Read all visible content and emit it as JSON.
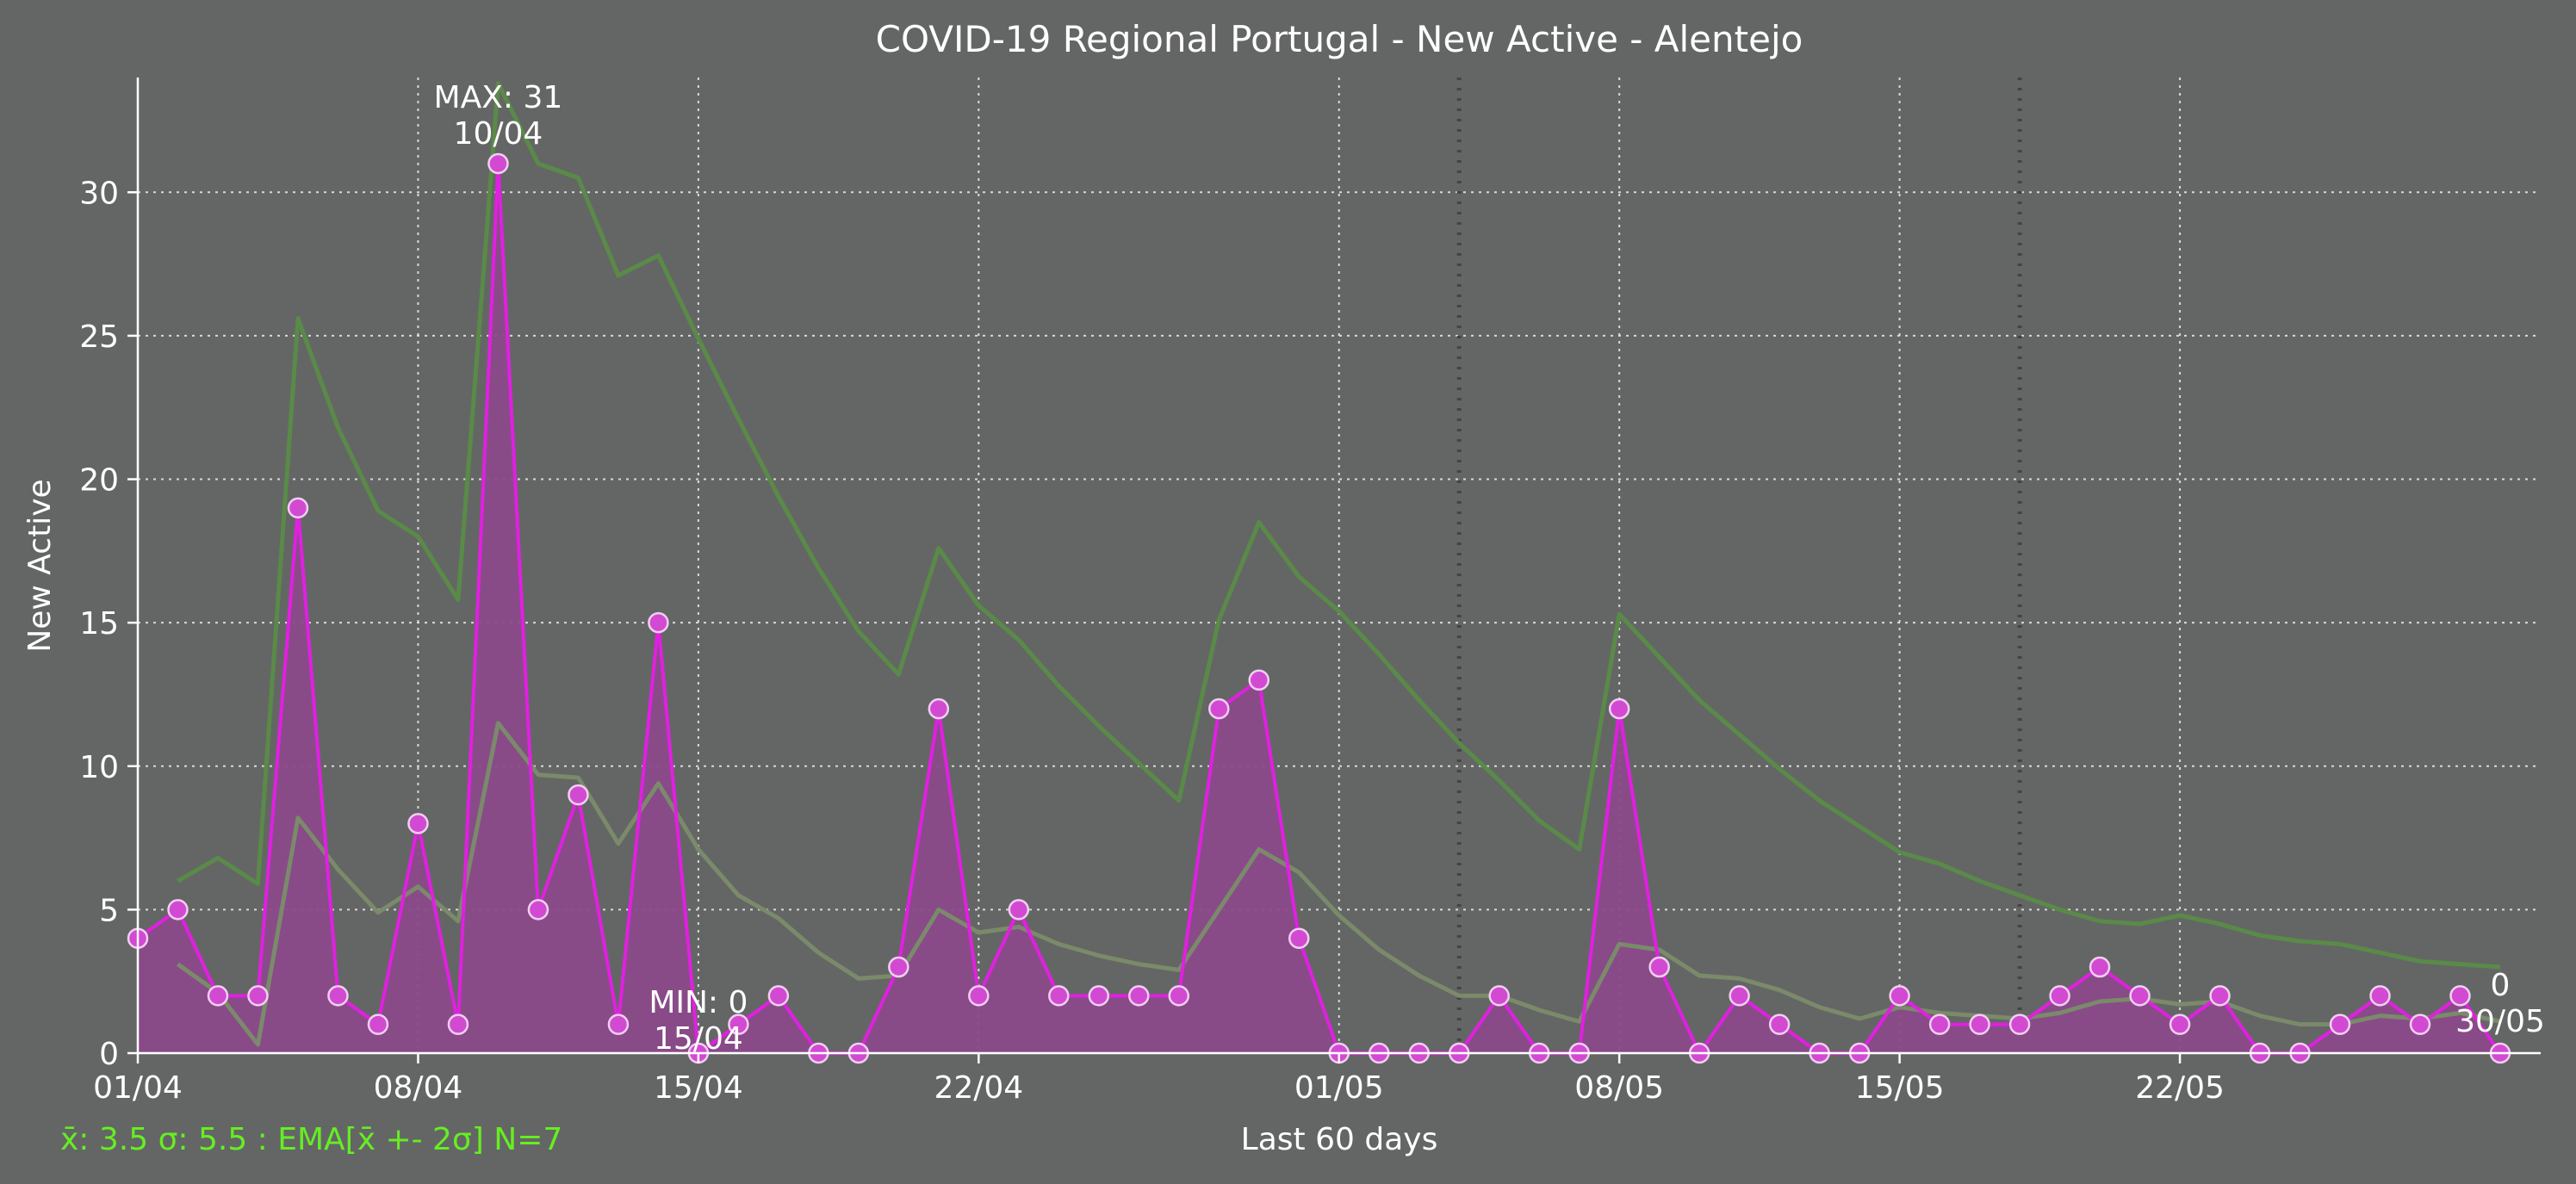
{
  "chart_data": {
    "type": "line",
    "title": "COVID-19 Regional Portugal - New Active - Alentejo",
    "xlabel": "Last 60 days",
    "ylabel": "New Active",
    "ylim": [
      0,
      34
    ],
    "yticks": [
      0,
      5,
      10,
      15,
      20,
      25,
      30
    ],
    "xticks": [
      {
        "index": 0,
        "label": "01/04"
      },
      {
        "index": 7,
        "label": "08/04"
      },
      {
        "index": 14,
        "label": "15/04"
      },
      {
        "index": 21,
        "label": "22/04"
      },
      {
        "index": 30,
        "label": "01/05"
      },
      {
        "index": 37,
        "label": "08/05"
      },
      {
        "index": 44,
        "label": "15/05"
      },
      {
        "index": 51,
        "label": "22/05"
      }
    ],
    "grid": true,
    "week_markers": [
      33,
      47
    ],
    "dates": [
      "01/04",
      "02/04",
      "03/04",
      "04/04",
      "05/04",
      "06/04",
      "07/04",
      "08/04",
      "09/04",
      "10/04",
      "11/04",
      "12/04",
      "13/04",
      "14/04",
      "15/04",
      "16/04",
      "17/04",
      "18/04",
      "19/04",
      "20/04",
      "21/04",
      "22/04",
      "23/04",
      "24/04",
      "25/04",
      "26/04",
      "27/04",
      "28/04",
      "29/04",
      "30/04",
      "01/05",
      "02/05",
      "03/05",
      "04/05",
      "05/05",
      "06/05",
      "07/05",
      "08/05",
      "09/05",
      "10/05",
      "11/05",
      "12/05",
      "13/05",
      "14/05",
      "15/05",
      "16/05",
      "17/05",
      "18/05",
      "19/05",
      "20/05",
      "21/05",
      "22/05",
      "23/05",
      "24/05",
      "25/05",
      "26/05",
      "27/05",
      "28/05",
      "29/05",
      "30/05"
    ],
    "series": [
      {
        "values": [
          4,
          5,
          2,
          2,
          19,
          2,
          1,
          8,
          1,
          31,
          5,
          9,
          1,
          15,
          0,
          1,
          2,
          0,
          0,
          3,
          12,
          2,
          5,
          2,
          2,
          2,
          2,
          12,
          13,
          4,
          0,
          0,
          0,
          0,
          2,
          0,
          0,
          12,
          3,
          0,
          2,
          1,
          0,
          0,
          2,
          1,
          1,
          1,
          2,
          3,
          2,
          1,
          2,
          0,
          0,
          1,
          2,
          1,
          2,
          0
        ],
        "color": "#e020e0",
        "fill": "#8a4a8a"
      },
      {
        "values": [
          null,
          6.0,
          6.8,
          5.9,
          25.6,
          21.8,
          18.9,
          18.0,
          15.8,
          33.8,
          31.0,
          30.5,
          27.1,
          27.8,
          24.9,
          22.1,
          19.4,
          16.9,
          14.7,
          13.2,
          17.6,
          15.6,
          14.4,
          12.8,
          11.4,
          10.1,
          8.8,
          15.1,
          18.5,
          16.6,
          15.4,
          13.9,
          12.3,
          10.8,
          9.5,
          8.1,
          7.1,
          15.3,
          13.8,
          12.3,
          11.1,
          9.9,
          8.8,
          7.9,
          7.0,
          6.6,
          6.0,
          5.5,
          5.0,
          4.6,
          4.5,
          4.8,
          4.5,
          4.1,
          3.9,
          3.8,
          3.5,
          3.2,
          3.1,
          3.0
        ],
        "color": "#5a8a48"
      },
      {
        "values": [
          null,
          3.1,
          2.1,
          0.3,
          8.2,
          6.4,
          4.9,
          5.8,
          4.6,
          11.5,
          9.7,
          9.6,
          7.3,
          9.4,
          7.1,
          5.5,
          4.7,
          3.5,
          2.6,
          2.7,
          5.0,
          4.2,
          4.4,
          3.8,
          3.4,
          3.1,
          2.9,
          5.0,
          7.1,
          6.3,
          4.8,
          3.6,
          2.7,
          2.0,
          2.0,
          1.5,
          1.1,
          3.8,
          3.6,
          2.7,
          2.6,
          2.2,
          1.6,
          1.2,
          1.6,
          1.4,
          1.3,
          1.2,
          1.4,
          1.8,
          1.9,
          1.7,
          1.8,
          1.3,
          1.0,
          1.0,
          1.3,
          1.2,
          1.4,
          1.1
        ],
        "color": "#7a8a6a"
      }
    ],
    "annotations": {
      "max": {
        "line1": "MAX: 31",
        "line2": "10/04",
        "index": 9,
        "value": 31
      },
      "min": {
        "line1": "MIN: 0",
        "line2": "15/04",
        "index": 14,
        "value": 0
      },
      "last": {
        "line1": "0",
        "line2": "30/05",
        "index": 59,
        "value": 0
      }
    },
    "footer": "x̄: 3.5 σ: 5.5 : EMA[x̄ +- 2σ] N=7",
    "footer_color": "#66ee22"
  }
}
